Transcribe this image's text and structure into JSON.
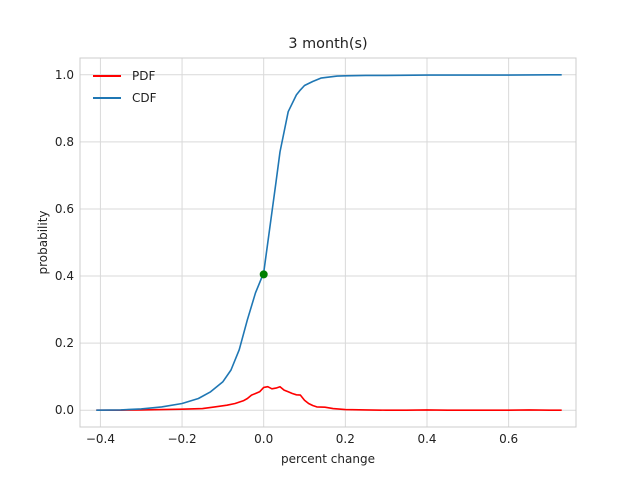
{
  "chart_data": {
    "type": "line",
    "title": "3 month(s)",
    "xlabel": "percent change",
    "ylabel": "probability",
    "xlim": [
      -0.45,
      0.765
    ],
    "ylim": [
      -0.05,
      1.05
    ],
    "grid": true,
    "legend_position": "top-left",
    "x_ticks": [
      {
        "value": -0.4,
        "label": "−0.4"
      },
      {
        "value": -0.2,
        "label": "−0.2"
      },
      {
        "value": 0.0,
        "label": "0.0"
      },
      {
        "value": 0.2,
        "label": "0.2"
      },
      {
        "value": 0.4,
        "label": "0.4"
      },
      {
        "value": 0.6,
        "label": "0.6"
      }
    ],
    "y_ticks": [
      {
        "value": 0.0,
        "label": "0.0"
      },
      {
        "value": 0.2,
        "label": "0.2"
      },
      {
        "value": 0.4,
        "label": "0.4"
      },
      {
        "value": 0.6,
        "label": "0.6"
      },
      {
        "value": 0.8,
        "label": "0.8"
      },
      {
        "value": 1.0,
        "label": "1.0"
      }
    ],
    "series": [
      {
        "name": "PDF",
        "color": "#ff0000",
        "x": [
          -0.41,
          -0.35,
          -0.3,
          -0.25,
          -0.2,
          -0.15,
          -0.12,
          -0.09,
          -0.07,
          -0.05,
          -0.04,
          -0.03,
          -0.02,
          -0.01,
          0.0,
          0.01,
          0.02,
          0.03,
          0.04,
          0.05,
          0.06,
          0.07,
          0.08,
          0.09,
          0.1,
          0.11,
          0.12,
          0.13,
          0.15,
          0.17,
          0.2,
          0.25,
          0.3,
          0.35,
          0.4,
          0.45,
          0.5,
          0.55,
          0.6,
          0.65,
          0.7,
          0.73
        ],
        "y": [
          0.0,
          0.0,
          0.001,
          0.002,
          0.003,
          0.005,
          0.01,
          0.015,
          0.02,
          0.028,
          0.035,
          0.045,
          0.05,
          0.055,
          0.068,
          0.07,
          0.064,
          0.066,
          0.07,
          0.06,
          0.055,
          0.05,
          0.046,
          0.045,
          0.03,
          0.02,
          0.014,
          0.01,
          0.009,
          0.005,
          0.002,
          0.001,
          0.0,
          0.0,
          0.001,
          0.0,
          0.0,
          0.0,
          0.0,
          0.001,
          0.0,
          0.0
        ]
      },
      {
        "name": "CDF",
        "color": "#1f77b4",
        "x": [
          -0.41,
          -0.35,
          -0.3,
          -0.25,
          -0.2,
          -0.16,
          -0.13,
          -0.1,
          -0.08,
          -0.06,
          -0.04,
          -0.02,
          -0.01,
          0.0,
          0.01,
          0.02,
          0.03,
          0.04,
          0.06,
          0.08,
          0.09,
          0.1,
          0.12,
          0.14,
          0.16,
          0.18,
          0.2,
          0.25,
          0.3,
          0.4,
          0.5,
          0.6,
          0.7,
          0.73
        ],
        "y": [
          0.0,
          0.001,
          0.004,
          0.01,
          0.02,
          0.035,
          0.055,
          0.085,
          0.12,
          0.18,
          0.27,
          0.35,
          0.38,
          0.41,
          0.5,
          0.59,
          0.68,
          0.77,
          0.89,
          0.94,
          0.955,
          0.968,
          0.98,
          0.99,
          0.993,
          0.996,
          0.997,
          0.998,
          0.998,
          0.999,
          0.999,
          0.999,
          1.0,
          1.0
        ]
      }
    ],
    "marker": {
      "x": 0.0,
      "y": 0.405,
      "color": "#008000"
    }
  }
}
